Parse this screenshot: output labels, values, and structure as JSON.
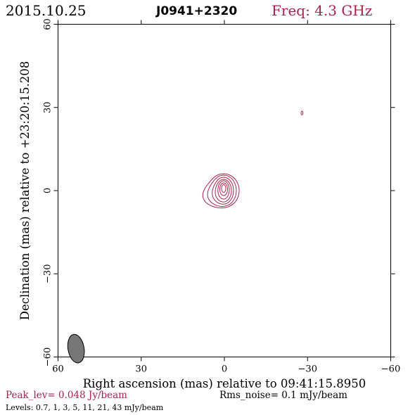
{
  "header": {
    "date": "2015.10.25",
    "source": "J0941+2320",
    "freq": "Freq: 4.3 GHz"
  },
  "footer": {
    "peak": "Peak_lev=  0.048 Jy/beam",
    "rms": "Rms_noise=   0.1 mJy/beam",
    "levels": "Levels: 0.7,    1,    3,    5,   11,   21,   43 mJy/beam"
  },
  "colors": {
    "contour": "#a8234a",
    "beam_fill": "#777777",
    "axis": "#000000"
  },
  "chart_data": {
    "type": "contour",
    "xlabel": "Right ascension (mas) relative to 09:41:15.8950",
    "ylabel": "Declination (mas) relative to +23:20:15.208",
    "xlim": [
      60,
      -60
    ],
    "ylim": [
      -60,
      60
    ],
    "xticks": [
      60,
      30,
      0,
      -30,
      -60
    ],
    "yticks": [
      60,
      30,
      0,
      -30,
      -60
    ],
    "xtick_labels": [
      "60",
      "30",
      "0",
      "−30",
      "−60"
    ],
    "ytick_labels": [
      "60",
      "30",
      "0",
      "−30",
      "−60"
    ],
    "contour_levels_mJy": [
      0.7,
      1,
      3,
      5,
      11,
      21,
      43
    ],
    "peak_Jy_per_beam": 0.048,
    "rms_mJy_per_beam": 0.1,
    "source_center": [
      0.2,
      0.7
    ],
    "secondary_component": [
      -28,
      28
    ],
    "beam": {
      "center": [
        53.5,
        -57
      ],
      "major": 5.2,
      "minor": 2.9,
      "pa_deg": 10
    }
  }
}
